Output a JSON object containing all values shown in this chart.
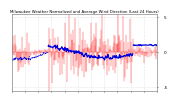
{
  "title": "Milwaukee Weather Normalized and Average Wind Direction (Last 24 Hours)",
  "background_color": "#ffffff",
  "plot_bg_color": "#ffffff",
  "grid_color": "#cccccc",
  "n_points": 288,
  "ylim": [
    -5.5,
    5.5
  ],
  "yticks": [
    -5,
    0,
    5
  ],
  "red_color": "#ff0000",
  "blue_color": "#0000ff",
  "avg_line_color": "#0000dd"
}
